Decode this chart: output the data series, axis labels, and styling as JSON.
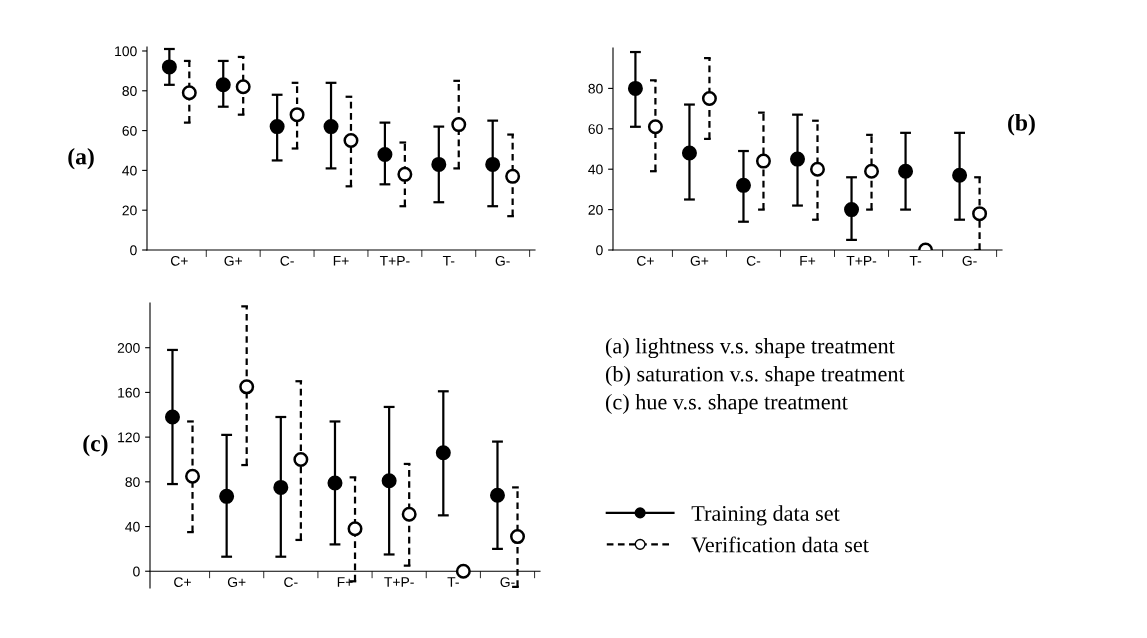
{
  "chart_data": [
    {
      "type": "scatter",
      "title": "(a)",
      "categories": [
        "C+",
        "G+",
        "C-",
        "F+",
        "T+P-",
        "T-",
        "G-"
      ],
      "ylim": [
        0,
        102
      ],
      "yticks": [
        0,
        20,
        40,
        60,
        80,
        100
      ],
      "marker": "circle",
      "legend": false,
      "grid": false,
      "series": [
        {
          "color": "#000000",
          "line_style": "solid",
          "values": [
            92,
            83,
            62,
            62,
            48,
            43,
            43
          ],
          "errors": [
            [
              83,
              101
            ],
            [
              72,
              95
            ],
            [
              45,
              78
            ],
            [
              41,
              84
            ],
            [
              33,
              64
            ],
            [
              24,
              62
            ],
            [
              22,
              65
            ]
          ]
        },
        {
          "color": "#000000",
          "line_style": "dashed",
          "values": [
            79,
            82,
            68,
            55,
            38,
            63,
            37
          ],
          "errors": [
            [
              64,
              95
            ],
            [
              68,
              97
            ],
            [
              51,
              84
            ],
            [
              32,
              77
            ],
            [
              22,
              54
            ],
            [
              41,
              85
            ],
            [
              17,
              58
            ]
          ]
        }
      ]
    },
    {
      "type": "scatter",
      "title": "(b)",
      "categories": [
        "C+",
        "G+",
        "C-",
        "F+",
        "T+P-",
        "T-",
        "G-"
      ],
      "ylim": [
        0,
        100
      ],
      "yticks": [
        0,
        20,
        40,
        60,
        80
      ],
      "marker": "circle",
      "legend": false,
      "grid": false,
      "series": [
        {
          "color": "#000000",
          "line_style": "solid",
          "values": [
            80,
            48,
            32,
            45,
            20,
            39,
            37
          ],
          "errors": [
            [
              61,
              98
            ],
            [
              25,
              72
            ],
            [
              14,
              49
            ],
            [
              22,
              67
            ],
            [
              5,
              36
            ],
            [
              20,
              58
            ],
            [
              15,
              58
            ]
          ]
        },
        {
          "color": "#000000",
          "line_style": "dashed",
          "values": [
            61,
            75,
            44,
            40,
            39,
            0,
            18
          ],
          "errors": [
            [
              39,
              84
            ],
            [
              55,
              95
            ],
            [
              20,
              68
            ],
            [
              15,
              64
            ],
            [
              20,
              57
            ],
            null,
            [
              0,
              36
            ]
          ]
        }
      ]
    },
    {
      "type": "scatter",
      "title": "(c)",
      "categories": [
        "C+",
        "G+",
        "C-",
        "F+",
        "T+P-",
        "T-",
        "G-"
      ],
      "ylim": [
        -15,
        240
      ],
      "yticks": [
        0,
        40,
        80,
        120,
        160,
        200
      ],
      "marker": "circle",
      "legend": "right",
      "grid": false,
      "annotations": [
        "(a) lightness v.s. shape treatment",
        "(b) saturation v.s. shape treatment",
        "(c) hue v.s. shape treatment"
      ],
      "series": [
        {
          "name": "Training data set",
          "color": "#000000",
          "line_style": "solid",
          "values": [
            138,
            67,
            75,
            79,
            81,
            106,
            68
          ],
          "errors": [
            [
              78,
              198
            ],
            [
              13,
              122
            ],
            [
              13,
              138
            ],
            [
              24,
              134
            ],
            [
              15,
              147
            ],
            [
              50,
              161
            ],
            [
              20,
              116
            ]
          ]
        },
        {
          "name": "Verification data set",
          "color": "#000000",
          "line_style": "dashed",
          "values": [
            85,
            165,
            100,
            38,
            51,
            0,
            31
          ],
          "errors": [
            [
              35,
              134
            ],
            [
              95,
              237
            ],
            [
              28,
              170
            ],
            [
              -9,
              84
            ],
            [
              5,
              96
            ],
            null,
            [
              -14,
              75
            ]
          ]
        }
      ]
    }
  ]
}
